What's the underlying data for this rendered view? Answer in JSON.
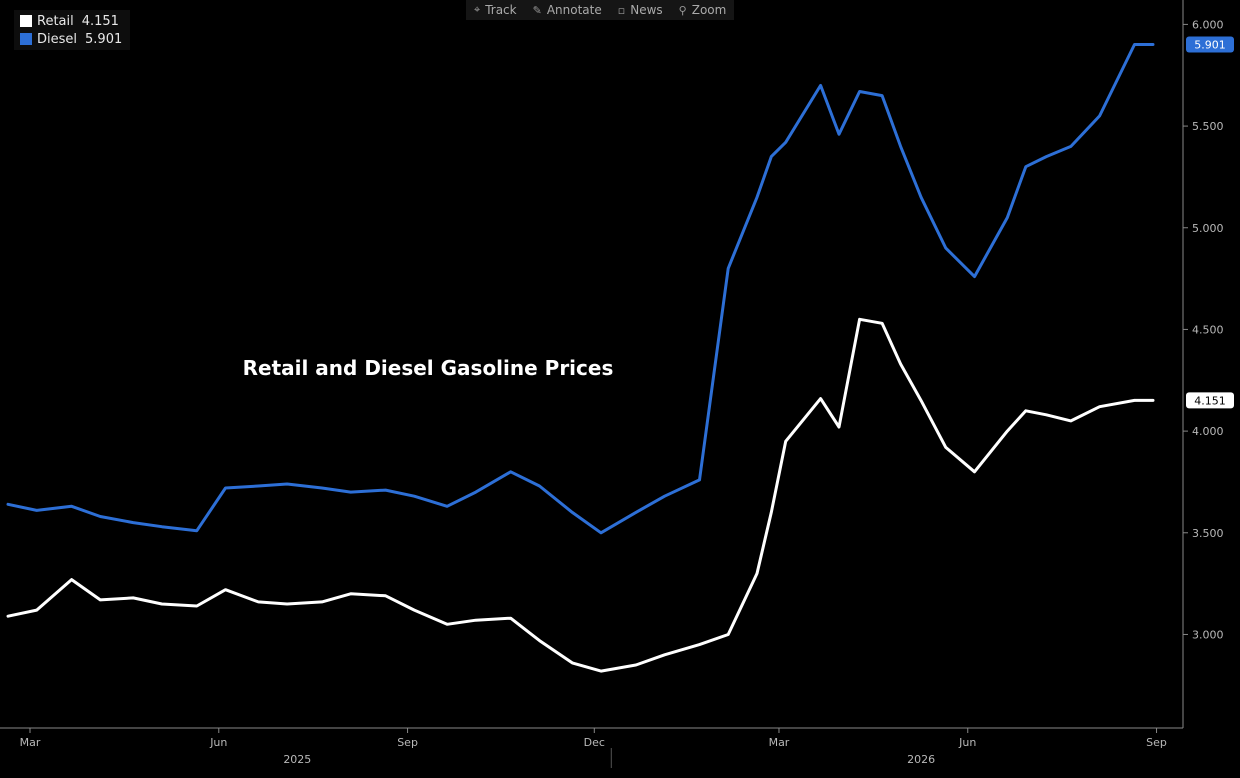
{
  "legend": {
    "retail": {
      "label": "Retail",
      "value": "4.151",
      "color": "#ffffff"
    },
    "diesel": {
      "label": "Diesel",
      "value": "5.901",
      "color": "#2d6fd6"
    }
  },
  "toolbar": {
    "items": [
      {
        "label": "Track",
        "icon": "crosshair-icon"
      },
      {
        "label": "Annotate",
        "icon": "pencil-icon"
      },
      {
        "label": "News",
        "icon": "news-icon"
      },
      {
        "label": "Zoom",
        "icon": "zoom-icon"
      }
    ]
  },
  "chart_data": {
    "type": "line",
    "title": "Retail and Diesel Gasoline Prices",
    "xlabel": "",
    "ylabel": "",
    "x_ticks": [
      "Mar",
      "Jun",
      "Sep",
      "Dec",
      "Mar",
      "Jun",
      "Sep"
    ],
    "x_years": [
      "2025",
      "2026"
    ],
    "x_range": [
      "2025-03",
      "2026-09"
    ],
    "y_ticks": [
      "3.000",
      "3.500",
      "4.000",
      "4.500",
      "5.000",
      "5.500",
      "6.000"
    ],
    "ylim": [
      2.54,
      6.12
    ],
    "grid": false,
    "legend_position": "top-left",
    "series": [
      {
        "name": "Retail",
        "color": "#ffffff",
        "last_value": "4.151",
        "x": [
          "2025-03-01",
          "2025-03-15",
          "2025-04-01",
          "2025-04-15",
          "2025-05-01",
          "2025-05-15",
          "2025-06-01",
          "2025-06-15",
          "2025-07-01",
          "2025-07-15",
          "2025-08-01",
          "2025-08-15",
          "2025-09-01",
          "2025-09-15",
          "2025-10-01",
          "2025-10-15",
          "2025-11-01",
          "2025-11-15",
          "2025-12-01",
          "2025-12-15",
          "2026-01-01",
          "2026-01-15",
          "2026-02-01",
          "2026-02-15",
          "2026-03-01",
          "2026-03-08",
          "2026-03-15",
          "2026-04-01",
          "2026-04-10",
          "2026-04-20",
          "2026-05-01",
          "2026-05-10",
          "2026-05-20",
          "2026-06-01",
          "2026-06-15",
          "2026-07-01",
          "2026-07-10",
          "2026-07-20",
          "2026-08-01",
          "2026-08-15",
          "2026-09-01",
          "2026-09-10"
        ],
        "values": [
          3.09,
          3.12,
          3.27,
          3.17,
          3.18,
          3.15,
          3.14,
          3.22,
          3.16,
          3.15,
          3.16,
          3.2,
          3.19,
          3.12,
          3.05,
          3.07,
          3.08,
          2.97,
          2.86,
          2.82,
          2.85,
          2.9,
          2.95,
          3.0,
          3.3,
          3.6,
          3.95,
          4.16,
          4.02,
          4.55,
          4.53,
          4.33,
          4.15,
          3.92,
          3.8,
          4.0,
          4.1,
          4.08,
          4.05,
          4.12,
          4.151,
          4.151
        ]
      },
      {
        "name": "Diesel",
        "color": "#2d6fd6",
        "last_value": "5.901",
        "x": [
          "2025-03-01",
          "2025-03-15",
          "2025-04-01",
          "2025-04-15",
          "2025-05-01",
          "2025-05-15",
          "2025-06-01",
          "2025-06-15",
          "2025-07-01",
          "2025-07-15",
          "2025-08-01",
          "2025-08-15",
          "2025-09-01",
          "2025-09-15",
          "2025-10-01",
          "2025-10-15",
          "2025-11-01",
          "2025-11-15",
          "2025-12-01",
          "2025-12-15",
          "2026-01-01",
          "2026-01-15",
          "2026-02-01",
          "2026-02-15",
          "2026-03-01",
          "2026-03-08",
          "2026-03-15",
          "2026-04-01",
          "2026-04-10",
          "2026-04-20",
          "2026-05-01",
          "2026-05-10",
          "2026-05-20",
          "2026-06-01",
          "2026-06-15",
          "2026-07-01",
          "2026-07-10",
          "2026-07-20",
          "2026-08-01",
          "2026-08-15",
          "2026-09-01",
          "2026-09-10"
        ],
        "values": [
          3.64,
          3.61,
          3.63,
          3.58,
          3.55,
          3.53,
          3.51,
          3.72,
          3.73,
          3.74,
          3.72,
          3.7,
          3.71,
          3.68,
          3.63,
          3.7,
          3.8,
          3.73,
          3.6,
          3.5,
          3.6,
          3.68,
          3.76,
          4.8,
          5.15,
          5.35,
          5.42,
          5.7,
          5.46,
          5.67,
          5.65,
          5.4,
          5.15,
          4.9,
          4.76,
          5.05,
          5.3,
          5.35,
          5.4,
          5.55,
          5.901,
          5.901
        ]
      }
    ]
  }
}
